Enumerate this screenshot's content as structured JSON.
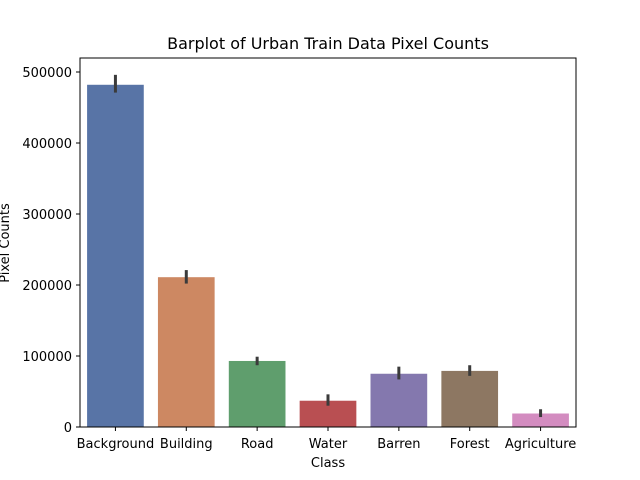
{
  "chart_data": {
    "type": "bar",
    "title": "Barplot of Urban Train Data Pixel Counts",
    "xlabel": "Class",
    "ylabel": "Pixel Counts",
    "categories": [
      "Background",
      "Building",
      "Road",
      "Water",
      "Barren",
      "Forest",
      "Agriculture"
    ],
    "values": [
      482000,
      211000,
      93000,
      37000,
      75000,
      79000,
      19000
    ],
    "error_low": [
      471000,
      202000,
      87000,
      30000,
      67000,
      72000,
      14000
    ],
    "error_high": [
      496000,
      221000,
      99000,
      46000,
      85000,
      87000,
      25000
    ],
    "colors": [
      "#5874a6",
      "#cd8862",
      "#5f9e6d",
      "#b94f52",
      "#8478ae",
      "#8d7762",
      "#d38cc0"
    ],
    "ylim": [
      0,
      500000
    ],
    "yticks": [
      0,
      100000,
      200000,
      300000,
      400000,
      500000
    ],
    "ytick_labels": [
      "0",
      "100000",
      "200000",
      "300000",
      "400000",
      "500000"
    ],
    "grid": false
  }
}
